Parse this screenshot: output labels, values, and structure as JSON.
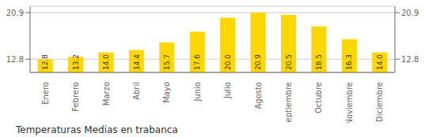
{
  "chart_data": {
    "type": "bar",
    "title": "Temperaturas Medias en trabanca",
    "categories": [
      "Enero",
      "Febrero",
      "Marzo",
      "Abril",
      "Mayo",
      "Junio",
      "Julio",
      "Agosto",
      "Septiembre",
      "Octubre",
      "Noviembre",
      "Diciembre"
    ],
    "values": [
      12.8,
      13.2,
      14.0,
      14.4,
      15.7,
      17.6,
      20.0,
      20.9,
      20.5,
      18.5,
      16.3,
      14.0
    ],
    "value_labels": [
      "12.8",
      "13.2",
      "14.0",
      "14.4",
      "15.7",
      "17.6",
      "20.0",
      "20.9",
      "20.5",
      "18.5",
      "16.3",
      "14.0"
    ],
    "color": "#FFD700",
    "ylim": [
      10.5,
      22.0
    ],
    "yticks": [
      12.8,
      20.9
    ],
    "grid": true,
    "data_labels": true
  }
}
